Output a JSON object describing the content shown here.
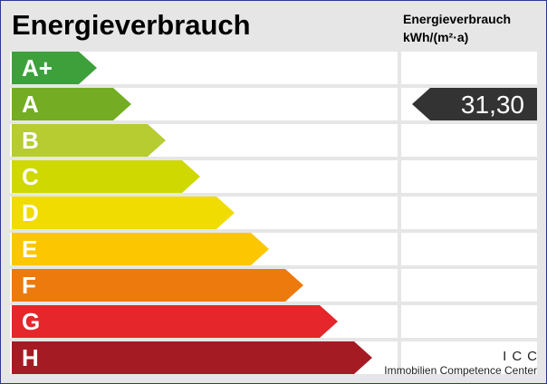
{
  "header": {
    "title": "Energieverbrauch",
    "unit_line1": "Energieverbrauch",
    "unit_line2": "kWh/(m²·a)"
  },
  "classes": [
    {
      "label": "A+",
      "color": "#3ea03b"
    },
    {
      "label": "A",
      "color": "#74ad23"
    },
    {
      "label": "B",
      "color": "#b6cc31"
    },
    {
      "label": "C",
      "color": "#cfd800"
    },
    {
      "label": "D",
      "color": "#f0dc00"
    },
    {
      "label": "E",
      "color": "#fcc600"
    },
    {
      "label": "F",
      "color": "#ec7a0d"
    },
    {
      "label": "G",
      "color": "#e5262a"
    },
    {
      "label": "H",
      "color": "#a51b24"
    }
  ],
  "marker": {
    "value": "31,30",
    "class_label": "A",
    "color": "#333333"
  },
  "logo": {
    "mark": "ICC",
    "name": "Immobilien Competence Center"
  }
}
